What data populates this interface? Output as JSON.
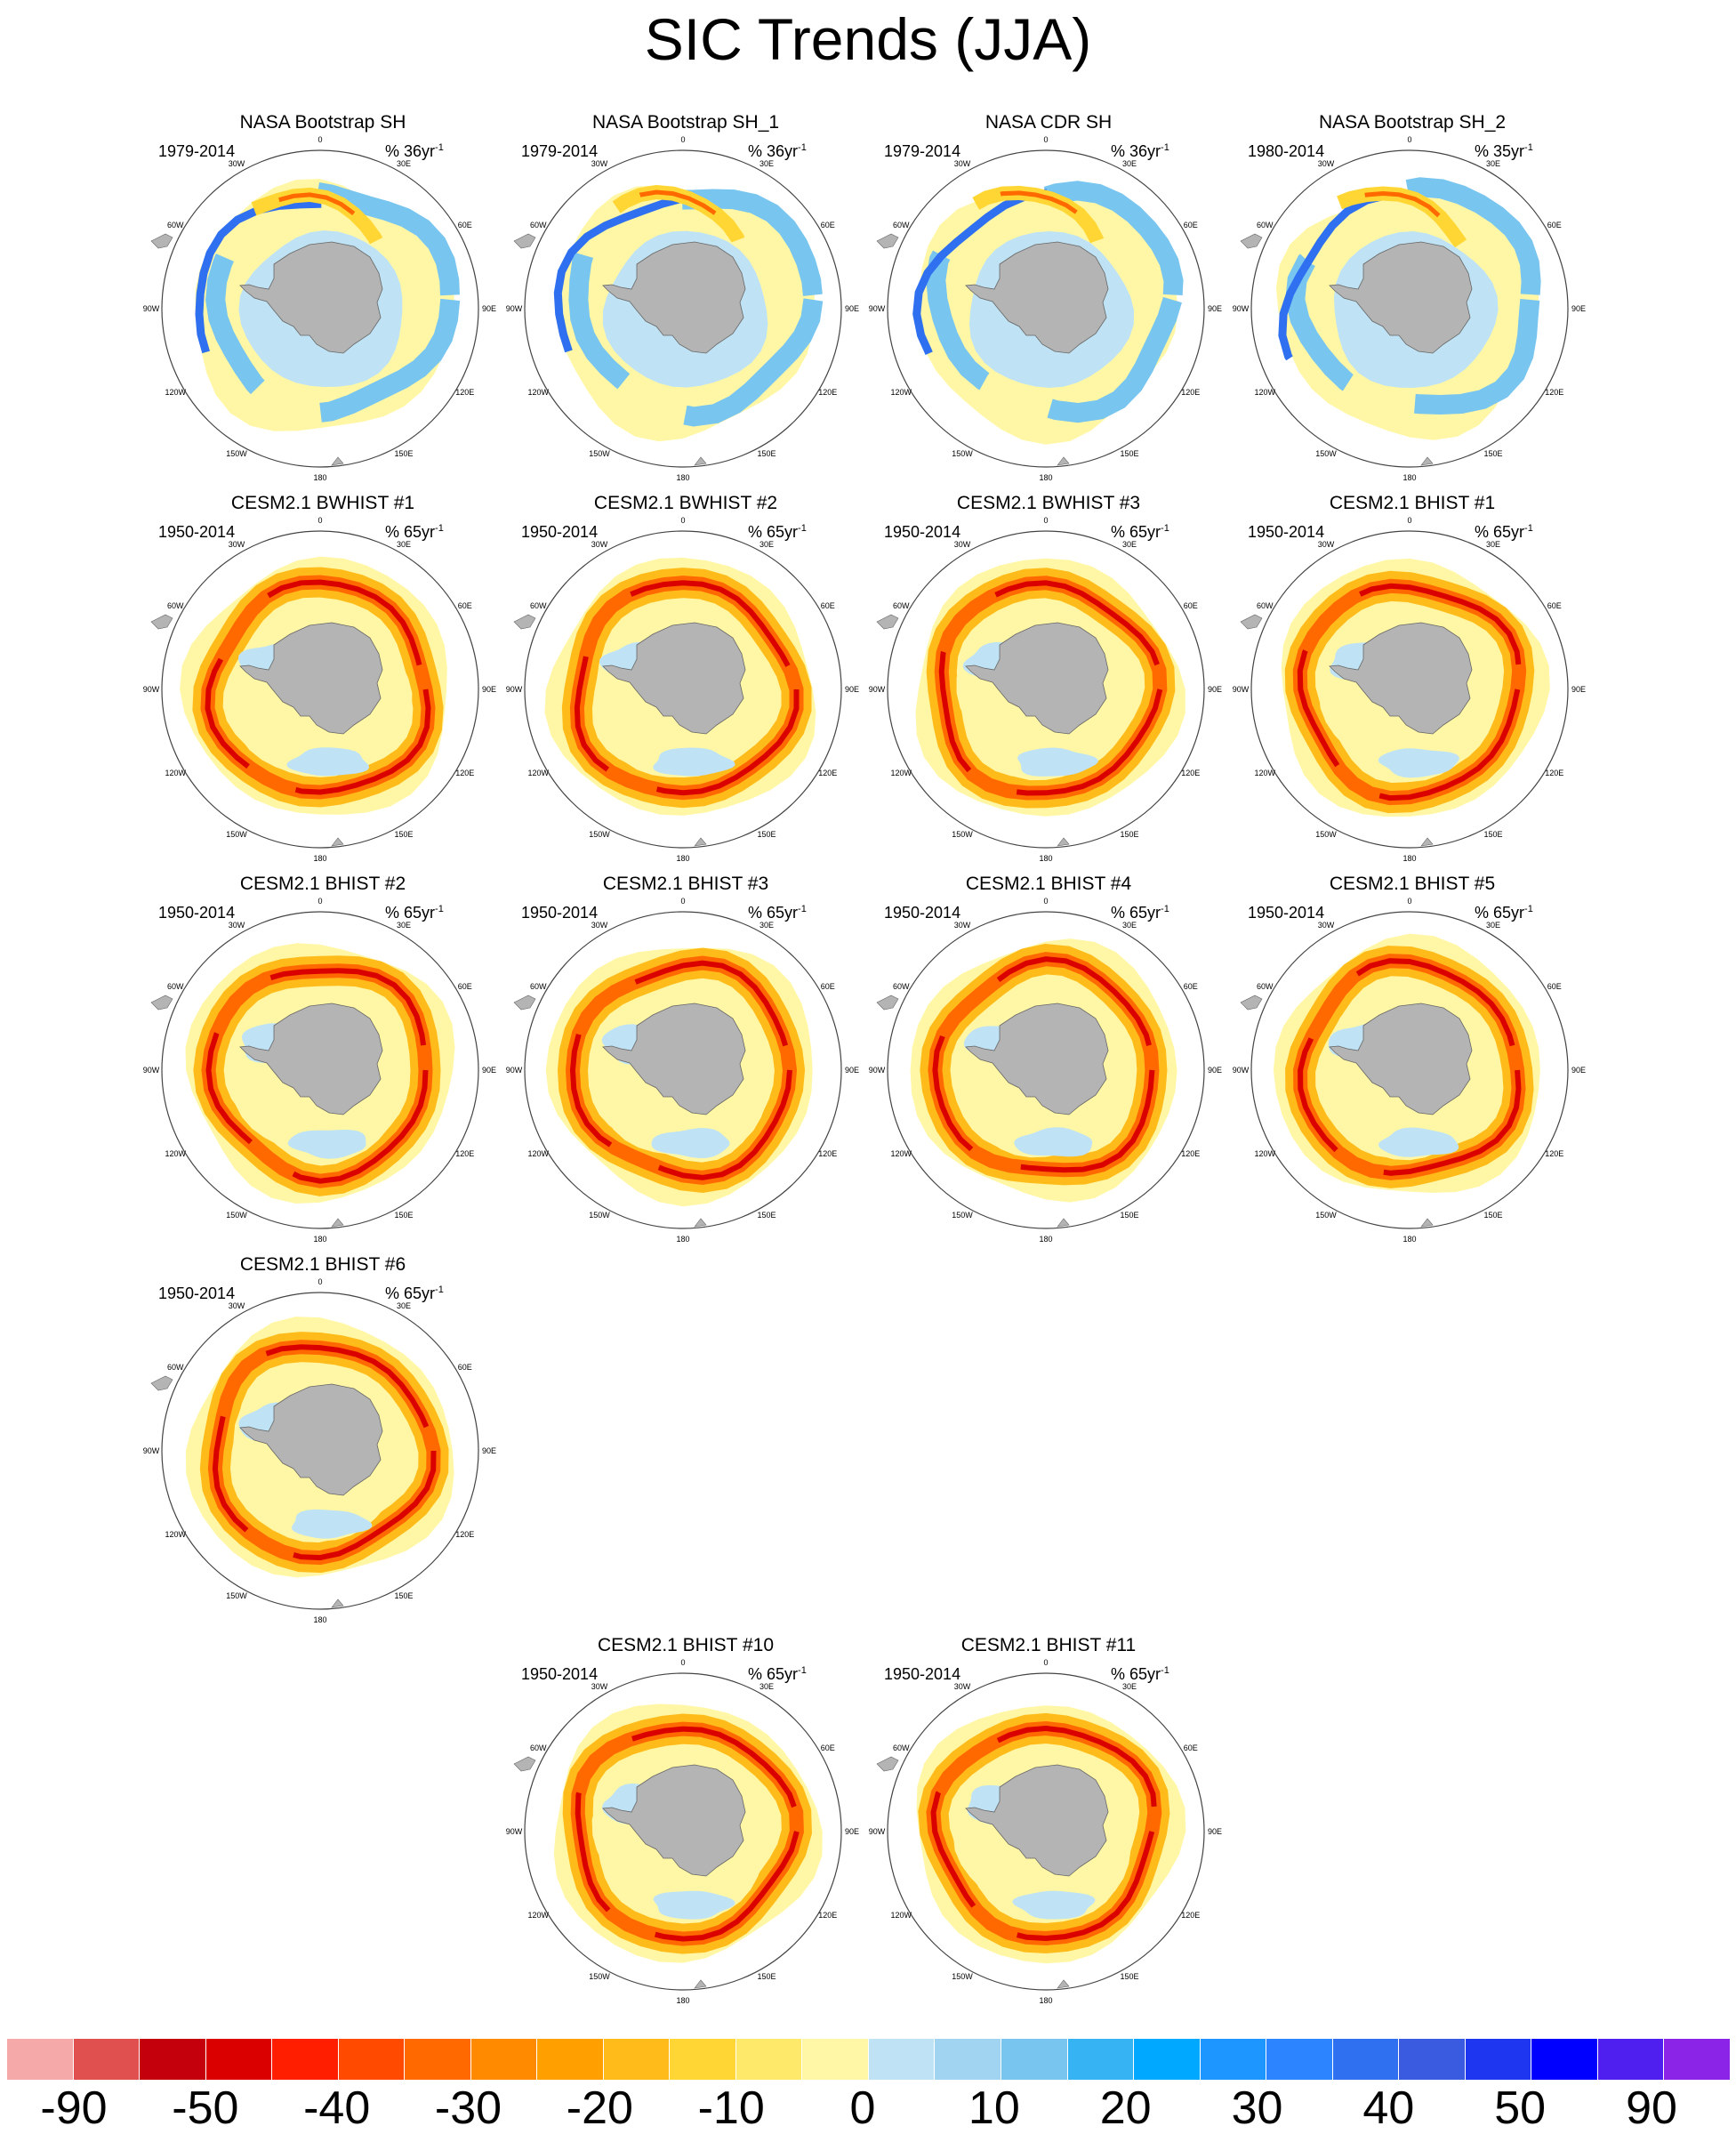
{
  "title": "SIC Trends (JJA)",
  "units_template": "% {n}yr",
  "units_superscript": "-1",
  "lon_labels": [
    "0",
    "30E",
    "60E",
    "90E",
    "120E",
    "150E",
    "180",
    "150W",
    "120W",
    "90W",
    "60W",
    "30W"
  ],
  "panels": [
    {
      "title": "NASA Bootstrap SH",
      "period": "1979-2014",
      "units": "% 36yr",
      "pattern": "obs"
    },
    {
      "title": "NASA Bootstrap SH_1",
      "period": "1979-2014",
      "units": "% 36yr",
      "pattern": "obs"
    },
    {
      "title": "NASA CDR SH",
      "period": "1979-2014",
      "units": "% 36yr",
      "pattern": "obs"
    },
    {
      "title": "NASA Bootstrap SH_2",
      "period": "1980-2014",
      "units": "% 35yr",
      "pattern": "obs"
    },
    {
      "title": "CESM2.1 BWHIST #1",
      "period": "1950-2014",
      "units": "% 65yr",
      "pattern": "model"
    },
    {
      "title": "CESM2.1 BWHIST #2",
      "period": "1950-2014",
      "units": "% 65yr",
      "pattern": "model"
    },
    {
      "title": "CESM2.1 BWHIST #3",
      "period": "1950-2014",
      "units": "% 65yr",
      "pattern": "model"
    },
    {
      "title": "CESM2.1 BHIST #1",
      "period": "1950-2014",
      "units": "% 65yr",
      "pattern": "model"
    },
    {
      "title": "CESM2.1 BHIST #2",
      "period": "1950-2014",
      "units": "% 65yr",
      "pattern": "model"
    },
    {
      "title": "CESM2.1 BHIST #3",
      "period": "1950-2014",
      "units": "% 65yr",
      "pattern": "model"
    },
    {
      "title": "CESM2.1 BHIST #4",
      "period": "1950-2014",
      "units": "% 65yr",
      "pattern": "model"
    },
    {
      "title": "CESM2.1 BHIST #5",
      "period": "1950-2014",
      "units": "% 65yr",
      "pattern": "model"
    },
    {
      "title": "CESM2.1 BHIST #6",
      "period": "1950-2014",
      "units": "% 65yr",
      "pattern": "model"
    },
    {
      "title": "CESM2.1 BHIST #10",
      "period": "1950-2014",
      "units": "% 65yr",
      "pattern": "model"
    },
    {
      "title": "CESM2.1 BHIST #11",
      "period": "1950-2014",
      "units": "% 65yr",
      "pattern": "model"
    }
  ],
  "colorbar": {
    "colors": [
      "#f6a9a9",
      "#e0504e",
      "#c4000c",
      "#da0000",
      "#ff1e00",
      "#ff4a00",
      "#ff6900",
      "#ff8a00",
      "#ffa000",
      "#ffbb1a",
      "#ffd634",
      "#ffe96a",
      "#fff7a5",
      "#bfe3f4",
      "#a0d4f0",
      "#78c5f0",
      "#36b3f2",
      "#00a8ff",
      "#1e96ff",
      "#2c84ff",
      "#2e70f0",
      "#3a5ae0",
      "#1e36f0",
      "#0000ff",
      "#4f1ff0",
      "#8b24e6"
    ],
    "labels": [
      "-90",
      "-50",
      "-40",
      "-30",
      "-20",
      "-10",
      "0",
      "10",
      "20",
      "30",
      "40",
      "50",
      "90"
    ]
  }
}
